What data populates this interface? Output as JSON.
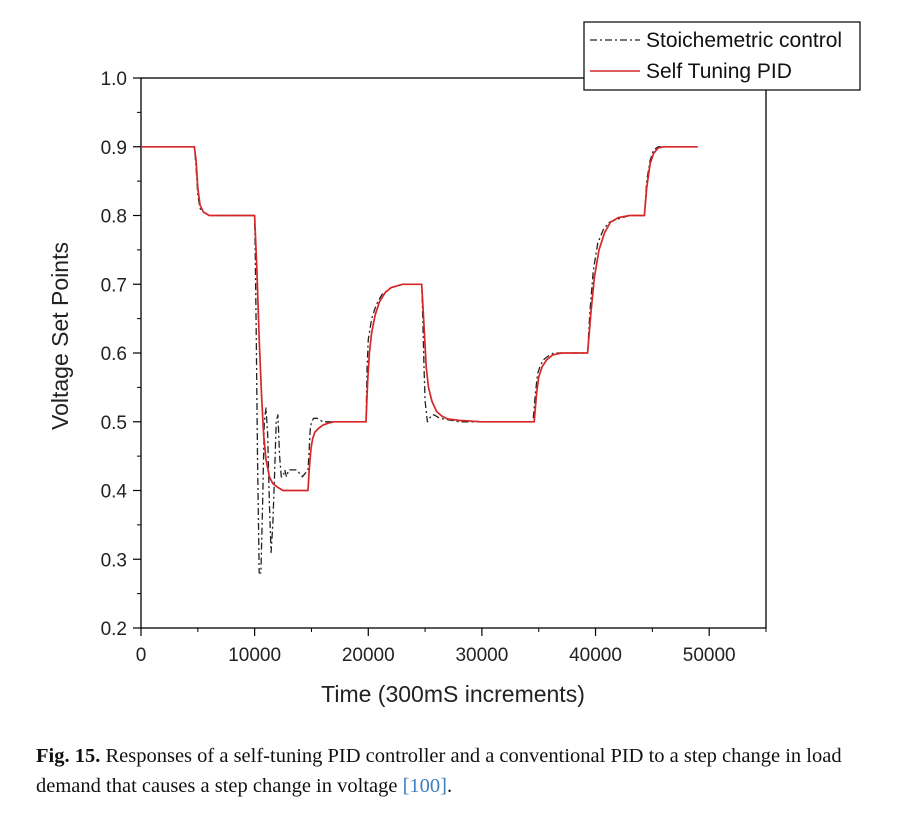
{
  "chart_data": {
    "type": "line",
    "xlabel": "Time (300mS increments)",
    "ylabel": "Voltage Set Points",
    "xlim": [
      0,
      55000
    ],
    "ylim": [
      0.2,
      1.0
    ],
    "x_ticks": [
      0,
      10000,
      20000,
      30000,
      40000,
      50000
    ],
    "x_tick_labels": [
      "0",
      "10000",
      "20000",
      "30000",
      "40000",
      "50000"
    ],
    "y_ticks": [
      0.2,
      0.3,
      0.4,
      0.5,
      0.6,
      0.7,
      0.8,
      0.9,
      1.0
    ],
    "y_tick_labels": [
      "0.2",
      "0.3",
      "0.4",
      "0.5",
      "0.6",
      "0.7",
      "0.8",
      "0.9",
      "1.0"
    ],
    "legend_position": "top-right",
    "series": [
      {
        "name": "Stoichemetric control",
        "color": "#222222",
        "style": "dash-dot",
        "x": [
          0,
          4700,
          4850,
          5000,
          5200,
          5500,
          6000,
          7000,
          9000,
          10000,
          10050,
          10150,
          10250,
          10400,
          10550,
          10700,
          10850,
          11000,
          11150,
          11300,
          11450,
          11600,
          11750,
          11900,
          12050,
          12200,
          12350,
          12500,
          12650,
          12800,
          13000,
          13300,
          13700,
          14200,
          14700,
          14800,
          14900,
          15000,
          15200,
          15500,
          16000,
          17000,
          18000,
          19000,
          19800,
          19900,
          20000,
          20300,
          20700,
          21200,
          22000,
          23000,
          24000,
          24700,
          24800,
          24900,
          25000,
          25200,
          25400,
          25600,
          25800,
          26000,
          26300,
          27000,
          28000,
          30000,
          32000,
          34500,
          34700,
          34900,
          35100,
          35400,
          35800,
          36300,
          37000,
          38000,
          39300,
          39500,
          39800,
          40200,
          40700,
          41200,
          42000,
          43000,
          44300,
          44500,
          44800,
          45100,
          45500,
          46000,
          47000,
          49000
        ],
        "y": [
          0.9,
          0.9,
          0.87,
          0.83,
          0.81,
          0.805,
          0.8,
          0.8,
          0.8,
          0.8,
          0.75,
          0.62,
          0.45,
          0.28,
          0.28,
          0.38,
          0.5,
          0.52,
          0.48,
          0.38,
          0.31,
          0.35,
          0.42,
          0.5,
          0.51,
          0.45,
          0.42,
          0.42,
          0.43,
          0.42,
          0.43,
          0.43,
          0.43,
          0.42,
          0.43,
          0.46,
          0.49,
          0.5,
          0.505,
          0.505,
          0.5,
          0.5,
          0.5,
          0.5,
          0.5,
          0.58,
          0.62,
          0.65,
          0.67,
          0.685,
          0.695,
          0.7,
          0.7,
          0.7,
          0.65,
          0.58,
          0.53,
          0.5,
          0.505,
          0.51,
          0.51,
          0.508,
          0.505,
          0.503,
          0.5,
          0.5,
          0.5,
          0.5,
          0.54,
          0.57,
          0.58,
          0.59,
          0.595,
          0.6,
          0.6,
          0.6,
          0.6,
          0.66,
          0.72,
          0.76,
          0.78,
          0.79,
          0.795,
          0.8,
          0.8,
          0.85,
          0.88,
          0.895,
          0.9,
          0.9,
          0.9,
          0.9
        ]
      },
      {
        "name": "Self Tuning PID",
        "color": "#d62728",
        "style": "solid",
        "x": [
          0,
          4700,
          4850,
          5000,
          5200,
          5500,
          6000,
          7000,
          9000,
          10000,
          10200,
          10400,
          10600,
          10800,
          11000,
          11300,
          11600,
          12000,
          12500,
          13000,
          13500,
          14000,
          14700,
          14800,
          14950,
          15100,
          15300,
          15600,
          16000,
          16500,
          17000,
          18000,
          19000,
          19800,
          19950,
          20100,
          20300,
          20600,
          21000,
          21500,
          22000,
          23000,
          24000,
          24700,
          24900,
          25100,
          25300,
          25600,
          26000,
          26500,
          27000,
          28000,
          30000,
          32000,
          34600,
          34800,
          35000,
          35300,
          35700,
          36200,
          37000,
          38000,
          39300,
          39600,
          39900,
          40300,
          40800,
          41300,
          42000,
          43000,
          44300,
          44500,
          44800,
          45100,
          45500,
          46000,
          47000,
          49000
        ],
        "y": [
          0.9,
          0.9,
          0.88,
          0.84,
          0.815,
          0.805,
          0.8,
          0.8,
          0.8,
          0.8,
          0.72,
          0.62,
          0.54,
          0.48,
          0.445,
          0.42,
          0.41,
          0.405,
          0.4,
          0.4,
          0.4,
          0.4,
          0.4,
          0.43,
          0.46,
          0.475,
          0.485,
          0.49,
          0.495,
          0.498,
          0.5,
          0.5,
          0.5,
          0.5,
          0.56,
          0.6,
          0.63,
          0.655,
          0.675,
          0.688,
          0.695,
          0.7,
          0.7,
          0.7,
          0.64,
          0.58,
          0.55,
          0.53,
          0.515,
          0.508,
          0.504,
          0.502,
          0.5,
          0.5,
          0.5,
          0.54,
          0.565,
          0.58,
          0.59,
          0.597,
          0.6,
          0.6,
          0.6,
          0.66,
          0.71,
          0.75,
          0.775,
          0.79,
          0.797,
          0.8,
          0.8,
          0.84,
          0.875,
          0.89,
          0.898,
          0.9,
          0.9,
          0.9
        ]
      }
    ]
  },
  "caption": {
    "label": "Fig. 15.",
    "text": " Responses of a self-tuning PID controller and a conventional PID to a step change in load demand that causes a step change in voltage ",
    "ref": "[100]",
    "end": "."
  }
}
